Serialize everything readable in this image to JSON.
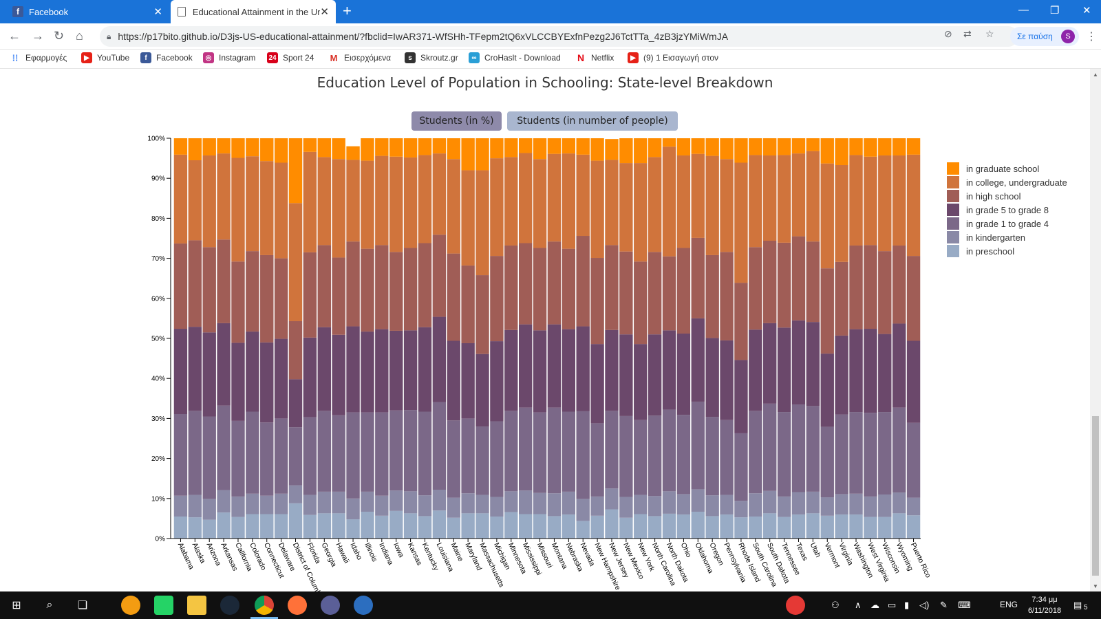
{
  "browser": {
    "tabs": [
      {
        "title": "Facebook",
        "active": false
      },
      {
        "title": "Educational Attainment in the Un",
        "active": true
      }
    ],
    "url": "https://p17bito.github.io/D3js-US-educational-attainment/?fbclid=IwAR371-WfSHh-TFepm2tQ6xVLCCBYExfnPezg2J6TctTTa_4zB3jzYMiWmJA",
    "paused_label": "Σε παύση",
    "profile_initial": "S",
    "bookmarks": [
      "Εφαρμογές",
      "YouTube",
      "Facebook",
      "Instagram",
      "Sport 24",
      "Εισερχόμενα",
      "Skroutz.gr",
      "CroHaslt - Download",
      "Netflix",
      "(9) 1 Εισαγωγή στον"
    ]
  },
  "page": {
    "title": "Education Level of Population in Schooling: State-level Breakdown",
    "buttons": {
      "percent": "Students (in %)",
      "number": "Students (in number of people)"
    }
  },
  "chart_data": {
    "type": "bar",
    "stacked": true,
    "normalized_to": 100,
    "ylim": [
      0,
      100
    ],
    "yticks": [
      "0%",
      "10%",
      "20%",
      "30%",
      "40%",
      "50%",
      "60%",
      "70%",
      "80%",
      "90%",
      "100%"
    ],
    "grid": false,
    "legend_position": "right",
    "categories": [
      "Alabama",
      "Alaska",
      "Arizona",
      "Arkansas",
      "California",
      "Colorado",
      "Connecticut",
      "Delaware",
      "District of Columbia",
      "Florida",
      "Georgia",
      "Hawaii",
      "Idaho",
      "Illinois",
      "Indiana",
      "Iowa",
      "Kansas",
      "Kentucky",
      "Louisiana",
      "Maine",
      "Maryland",
      "Massachusetts",
      "Michigan",
      "Minnesota",
      "Mississippi",
      "Missouri",
      "Montana",
      "Nebraska",
      "Nevada",
      "New Hampshire",
      "New Jersey",
      "New Mexico",
      "New York",
      "North Carolina",
      "North Dakota",
      "Ohio",
      "Oklahoma",
      "Oregon",
      "Pennsylvania",
      "Rhode Island",
      "South Carolina",
      "South Dakota",
      "Tennessee",
      "Texas",
      "Utah",
      "Vermont",
      "Virginia",
      "Washington",
      "West Virginia",
      "Wisconsin",
      "Wyoming",
      "Puerto Rico"
    ],
    "series": [
      {
        "name": "in preschool",
        "color": "#98abc5",
        "values": [
          5.5,
          5.3,
          4.7,
          6.5,
          5.4,
          6.1,
          6.1,
          6.1,
          8.8,
          5.9,
          6.3,
          6.3,
          4.8,
          6.7,
          5.7,
          6.9,
          6.3,
          5.6,
          7.0,
          5.2,
          6.3,
          6.3,
          5.5,
          6.6,
          6.1,
          6.1,
          5.6,
          6.0,
          4.4,
          5.7,
          7.3,
          5.2,
          6.1,
          5.6,
          6.2,
          6.0,
          6.7,
          5.6,
          6.0,
          5.3,
          5.5,
          6.3,
          5.4,
          6.0,
          6.3,
          5.7,
          6.0,
          6.0,
          5.4,
          5.4,
          6.3,
          5.8
        ]
      },
      {
        "name": "in kindergarten",
        "color": "#8a89a6",
        "values": [
          5.2,
          5.6,
          5.2,
          5.6,
          5.1,
          5.1,
          4.6,
          5.1,
          4.5,
          5.0,
          5.4,
          5.4,
          5.2,
          5.0,
          5.0,
          5.1,
          5.5,
          5.2,
          5.2,
          5.0,
          5.0,
          4.6,
          4.9,
          5.2,
          5.9,
          5.3,
          5.7,
          5.7,
          5.5,
          4.8,
          5.2,
          5.2,
          4.8,
          5.0,
          5.6,
          5.1,
          5.6,
          5.2,
          4.9,
          4.1,
          5.8,
          5.6,
          5.1,
          5.6,
          5.4,
          4.6,
          5.1,
          5.2,
          5.1,
          5.6,
          5.2,
          4.4
        ]
      },
      {
        "name": "in grade 1 to grade 4",
        "color": "#7b6888",
        "values": [
          20.4,
          21.0,
          20.6,
          21.1,
          18.9,
          20.5,
          18.3,
          18.8,
          14.5,
          19.4,
          20.2,
          19.1,
          21.5,
          19.8,
          20.8,
          20.0,
          20.3,
          20.9,
          21.9,
          19.3,
          18.7,
          17.1,
          18.9,
          20.1,
          20.7,
          20.1,
          21.4,
          20.0,
          21.9,
          18.3,
          19.4,
          20.2,
          18.7,
          20.1,
          20.4,
          19.8,
          21.9,
          19.6,
          18.7,
          16.9,
          20.6,
          21.8,
          21.1,
          21.9,
          21.4,
          17.6,
          19.9,
          20.4,
          20.9,
          20.6,
          21.2,
          18.7
        ]
      },
      {
        "name": "in grade 5 to grade 8",
        "color": "#6b486b",
        "values": [
          21.3,
          21.0,
          21.0,
          20.6,
          19.5,
          20.0,
          20.0,
          19.9,
          12.0,
          19.9,
          20.9,
          20.1,
          21.5,
          20.2,
          20.8,
          19.9,
          19.9,
          21.1,
          21.3,
          19.9,
          18.8,
          18.1,
          20.0,
          20.2,
          20.8,
          20.5,
          20.8,
          20.6,
          21.2,
          19.8,
          20.2,
          20.4,
          19.0,
          20.3,
          19.8,
          20.3,
          20.8,
          19.7,
          19.9,
          18.3,
          20.3,
          20.1,
          21.1,
          21.0,
          21.0,
          18.3,
          19.7,
          20.7,
          21.0,
          19.5,
          21.0,
          20.5
        ]
      },
      {
        "name": "in high school",
        "color": "#a05d56",
        "values": [
          21.3,
          21.6,
          21.3,
          20.9,
          20.3,
          20.1,
          21.8,
          20.1,
          14.5,
          21.3,
          20.5,
          19.3,
          21.2,
          20.7,
          21.0,
          19.7,
          20.6,
          21.0,
          20.5,
          21.8,
          19.4,
          19.7,
          21.3,
          21.1,
          20.3,
          20.6,
          20.7,
          20.1,
          22.6,
          21.5,
          21.2,
          20.7,
          20.6,
          20.6,
          18.5,
          21.4,
          20.1,
          20.7,
          22.1,
          19.3,
          20.6,
          20.6,
          21.2,
          21.0,
          20.1,
          21.3,
          18.4,
          20.9,
          20.9,
          20.7,
          19.5,
          21.2
        ]
      },
      {
        "name": "in college, undergraduate",
        "color": "#d0743c",
        "values": [
          22.2,
          20.0,
          22.9,
          21.5,
          25.9,
          23.7,
          23.5,
          23.9,
          29.5,
          25.1,
          22.0,
          24.6,
          20.4,
          22.0,
          22.3,
          23.8,
          22.6,
          22.0,
          20.3,
          23.6,
          23.8,
          26.2,
          24.4,
          22.1,
          22.5,
          22.2,
          21.9,
          23.8,
          20.3,
          24.3,
          21.3,
          22.1,
          24.6,
          23.7,
          27.4,
          23.1,
          21.0,
          24.8,
          23.2,
          30.0,
          23.0,
          21.3,
          21.9,
          20.7,
          22.6,
          26.2,
          24.2,
          22.6,
          22.1,
          23.9,
          22.5,
          25.3
        ]
      },
      {
        "name": "in graduate school",
        "color": "#ff8c00",
        "values": [
          4.1,
          5.5,
          4.3,
          3.8,
          4.9,
          4.5,
          5.7,
          6.1,
          16.2,
          3.4,
          4.7,
          5.2,
          3.4,
          5.6,
          4.4,
          4.6,
          4.8,
          4.2,
          3.8,
          5.2,
          8.0,
          8.0,
          5.0,
          4.7,
          3.7,
          5.2,
          3.9,
          3.8,
          4.1,
          5.6,
          5.2,
          6.2,
          6.2,
          4.7,
          2.1,
          4.3,
          3.9,
          4.4,
          5.2,
          6.1,
          4.2,
          4.3,
          4.2,
          3.8,
          3.2,
          6.3,
          6.7,
          4.2,
          4.6,
          4.3,
          4.3,
          4.1
        ]
      }
    ]
  },
  "taskbar": {
    "language": "ENG",
    "time": "7:34 μμ",
    "date": "6/11/2018",
    "notifications": "5"
  }
}
